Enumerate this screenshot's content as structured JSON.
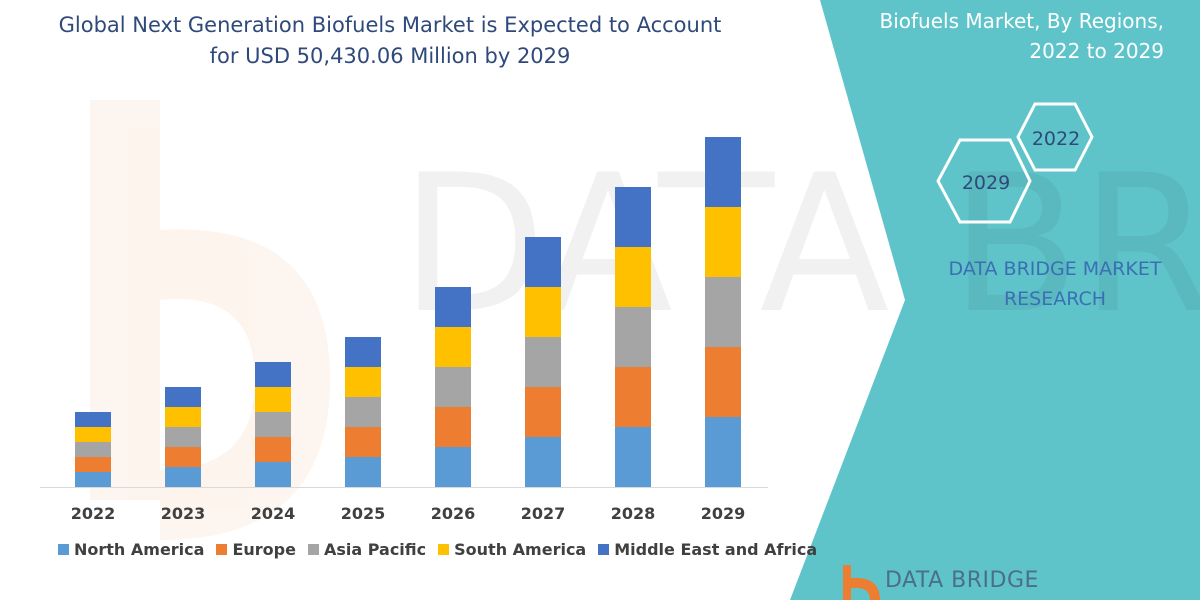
{
  "header": {
    "title_line1": "Global Next Generation Biofuels Market is Expected to Account",
    "title_line2": "for USD 50,430.06 Million by 2029"
  },
  "side_panel": {
    "title_line1": "Biofuels Market, By Regions,",
    "title_line2": "2022 to 2029",
    "hex_labels": [
      "2022",
      "2029"
    ],
    "brand_line1": "DATA BRIDGE MARKET",
    "brand_line2": "RESEARCH",
    "logo_text": "DATA BRIDGE",
    "panel_color": "#5fc4c9"
  },
  "chart_data": {
    "type": "bar",
    "stacked": true,
    "categories": [
      "2022",
      "2023",
      "2024",
      "2025",
      "2026",
      "2027",
      "2028",
      "2029"
    ],
    "series": [
      {
        "name": "North America",
        "color": "#5b9bd5",
        "values": [
          15,
          20,
          25,
          30,
          40,
          50,
          60,
          70
        ]
      },
      {
        "name": "Europe",
        "color": "#ed7d31",
        "values": [
          15,
          20,
          25,
          30,
          40,
          50,
          60,
          70
        ]
      },
      {
        "name": "Asia Pacific",
        "color": "#a5a5a5",
        "values": [
          15,
          20,
          25,
          30,
          40,
          50,
          60,
          70
        ]
      },
      {
        "name": "South America",
        "color": "#ffc000",
        "values": [
          15,
          20,
          25,
          30,
          40,
          50,
          60,
          70
        ]
      },
      {
        "name": "Middle East and Africa",
        "color": "#4472c4",
        "values": [
          15,
          20,
          25,
          30,
          40,
          50,
          60,
          70
        ]
      }
    ],
    "legend_position": "bottom",
    "grid": false,
    "y_axis_shown": false,
    "title": "Global Next Generation Biofuels Market is Expected to Account for USD 50,430.06 Million by 2029"
  }
}
